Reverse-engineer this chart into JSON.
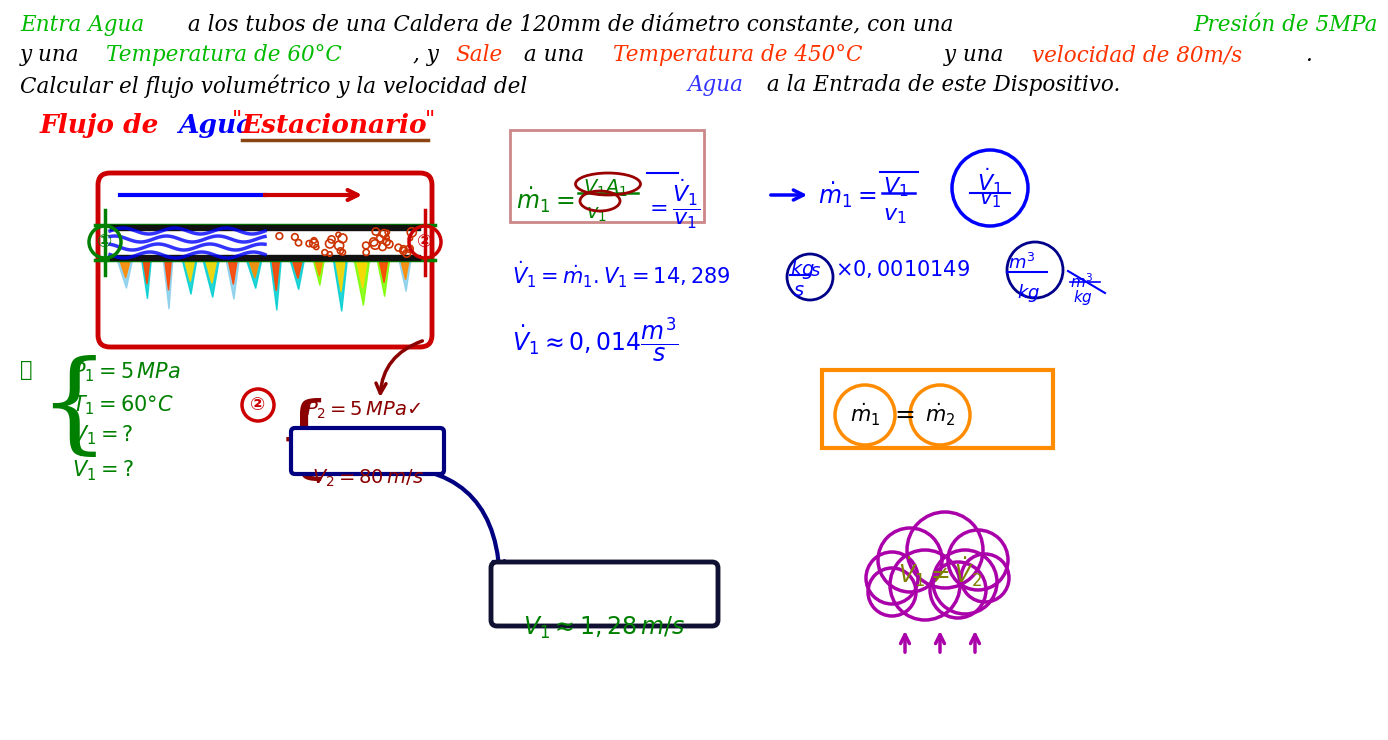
{
  "bg_color": "#ffffff",
  "title_line1_parts": [
    {
      "text": "Entra Agua",
      "color": "#00bb00"
    },
    {
      "text": " a los tubos de una Caldera de 120mm de diámetro constante, con una ",
      "color": "#000000"
    },
    {
      "text": "Presión de 5MPa",
      "color": "#00bb00"
    }
  ],
  "title_line2_parts": [
    {
      "text": "y una ",
      "color": "#000000"
    },
    {
      "text": "Temperatura de 60°C",
      "color": "#00bb00"
    },
    {
      "text": ", y ",
      "color": "#000000"
    },
    {
      "text": "Sale",
      "color": "#ff3300"
    },
    {
      "text": " a una ",
      "color": "#000000"
    },
    {
      "text": "Temperatura de 450°C",
      "color": "#ff3300"
    },
    {
      "text": " y una ",
      "color": "#000000"
    },
    {
      "text": "velocidad de 80m/s",
      "color": "#ff3300"
    },
    {
      "text": ".",
      "color": "#000000"
    }
  ],
  "title_line3_parts": [
    {
      "text": "Calcular el flujo volumétrico y la velocidad del ",
      "color": "#000000"
    },
    {
      "text": "Agua",
      "color": "#3333ff"
    },
    {
      "text": " a la Entrada de este Dispositivo.",
      "color": "#000000"
    }
  ]
}
